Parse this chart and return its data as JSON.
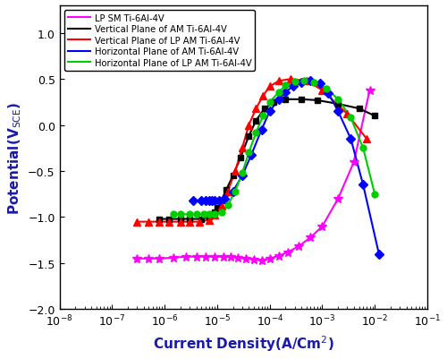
{
  "xlabel": "Current Density(A/Cm$^2$)",
  "ylabel": "Potential(V$_{SCE}$)",
  "xlim_log": [
    -8,
    -1
  ],
  "ylim": [
    -2.0,
    1.3
  ],
  "yticks": [
    -2.0,
    -1.5,
    -1.0,
    -0.5,
    0.0,
    0.5,
    1.0
  ],
  "series": [
    {
      "label": "LP SM Ti-6Al-4V",
      "color": "#FF00FF",
      "marker": "*",
      "markersize": 7,
      "linewidth": 1.5,
      "x": [
        3e-07,
        5e-07,
        8e-07,
        1.5e-06,
        2.5e-06,
        4e-06,
        6e-06,
        9e-06,
        1.3e-05,
        1.8e-05,
        2.5e-05,
        3.5e-05,
        5e-05,
        7e-05,
        0.0001,
        0.00015,
        0.00022,
        0.00035,
        0.0006,
        0.001,
        0.002,
        0.004,
        0.008
      ],
      "y": [
        -1.45,
        -1.45,
        -1.45,
        -1.44,
        -1.43,
        -1.43,
        -1.43,
        -1.43,
        -1.43,
        -1.43,
        -1.44,
        -1.45,
        -1.46,
        -1.47,
        -1.45,
        -1.42,
        -1.38,
        -1.32,
        -1.22,
        -1.1,
        -0.8,
        -0.4,
        0.38
      ]
    },
    {
      "label": "Vertical Plane of AM Ti-6Al-4V",
      "color": "#000000",
      "marker": "s",
      "markersize": 5,
      "linewidth": 1.5,
      "x": [
        8e-07,
        1.2e-06,
        2e-06,
        3e-06,
        5e-06,
        7e-06,
        8.5e-06,
        9e-06,
        1e-05,
        1.2e-05,
        1.5e-05,
        2e-05,
        2.8e-05,
        4e-05,
        5.5e-05,
        8e-05,
        0.00012,
        0.0002,
        0.0004,
        0.0008,
        0.002,
        0.005,
        0.01
      ],
      "y": [
        -1.02,
        -1.02,
        -1.02,
        -1.02,
        -1.02,
        -1.0,
        -0.98,
        -0.95,
        -0.9,
        -0.82,
        -0.7,
        -0.55,
        -0.35,
        -0.12,
        0.05,
        0.18,
        0.25,
        0.28,
        0.28,
        0.27,
        0.23,
        0.18,
        0.1
      ]
    },
    {
      "label": "Vertical Plane of LP AM Ti-6Al-4V",
      "color": "#FF0000",
      "marker": "^",
      "markersize": 6,
      "linewidth": 1.5,
      "x": [
        3e-07,
        5e-07,
        8e-07,
        1.2e-06,
        2e-06,
        3e-06,
        4.5e-06,
        7e-06,
        9e-06,
        1.2e-05,
        1.6e-05,
        2.2e-05,
        3e-05,
        4e-05,
        5.5e-05,
        7.5e-05,
        0.0001,
        0.00015,
        0.00025,
        0.0005,
        0.001,
        0.003,
        0.007
      ],
      "y": [
        -1.05,
        -1.05,
        -1.05,
        -1.05,
        -1.05,
        -1.05,
        -1.05,
        -1.03,
        -0.98,
        -0.88,
        -0.72,
        -0.5,
        -0.25,
        0.0,
        0.18,
        0.32,
        0.42,
        0.48,
        0.5,
        0.48,
        0.38,
        0.12,
        -0.15
      ]
    },
    {
      "label": "Horizontal Plane of AM Ti-6Al-4V",
      "color": "#0000FF",
      "marker": "D",
      "markersize": 5,
      "linewidth": 1.5,
      "x": [
        3.5e-06,
        5e-06,
        6e-06,
        7e-06,
        8e-06,
        9e-06,
        1.1e-05,
        1.4e-05,
        2e-05,
        3e-05,
        4.5e-05,
        7e-05,
        0.0001,
        0.00015,
        0.0002,
        0.00028,
        0.0004,
        0.0006,
        0.0009,
        0.0013,
        0.002,
        0.0035,
        0.006,
        0.012
      ],
      "y": [
        -0.82,
        -0.82,
        -0.82,
        -0.82,
        -0.82,
        -0.82,
        -0.82,
        -0.8,
        -0.72,
        -0.55,
        -0.32,
        -0.05,
        0.15,
        0.28,
        0.36,
        0.42,
        0.46,
        0.48,
        0.45,
        0.35,
        0.15,
        -0.15,
        -0.65,
        -1.4
      ]
    },
    {
      "label": "Horizontal Plane of LP AM Ti-6Al-4V",
      "color": "#00CC00",
      "marker": "o",
      "markersize": 5,
      "linewidth": 1.5,
      "x": [
        1.5e-06,
        2e-06,
        3e-06,
        4e-06,
        5.5e-06,
        7e-06,
        9e-06,
        1.2e-05,
        1.6e-05,
        2.2e-05,
        3e-05,
        4e-05,
        5.5e-05,
        7.5e-05,
        0.0001,
        0.00015,
        0.0002,
        0.0003,
        0.00045,
        0.0007,
        0.0012,
        0.002,
        0.0035,
        0.006,
        0.01
      ],
      "y": [
        -0.97,
        -0.97,
        -0.97,
        -0.97,
        -0.97,
        -0.97,
        -0.97,
        -0.95,
        -0.87,
        -0.72,
        -0.52,
        -0.3,
        -0.08,
        0.1,
        0.25,
        0.36,
        0.43,
        0.47,
        0.48,
        0.46,
        0.4,
        0.28,
        0.08,
        -0.25,
        -0.75
      ]
    }
  ]
}
